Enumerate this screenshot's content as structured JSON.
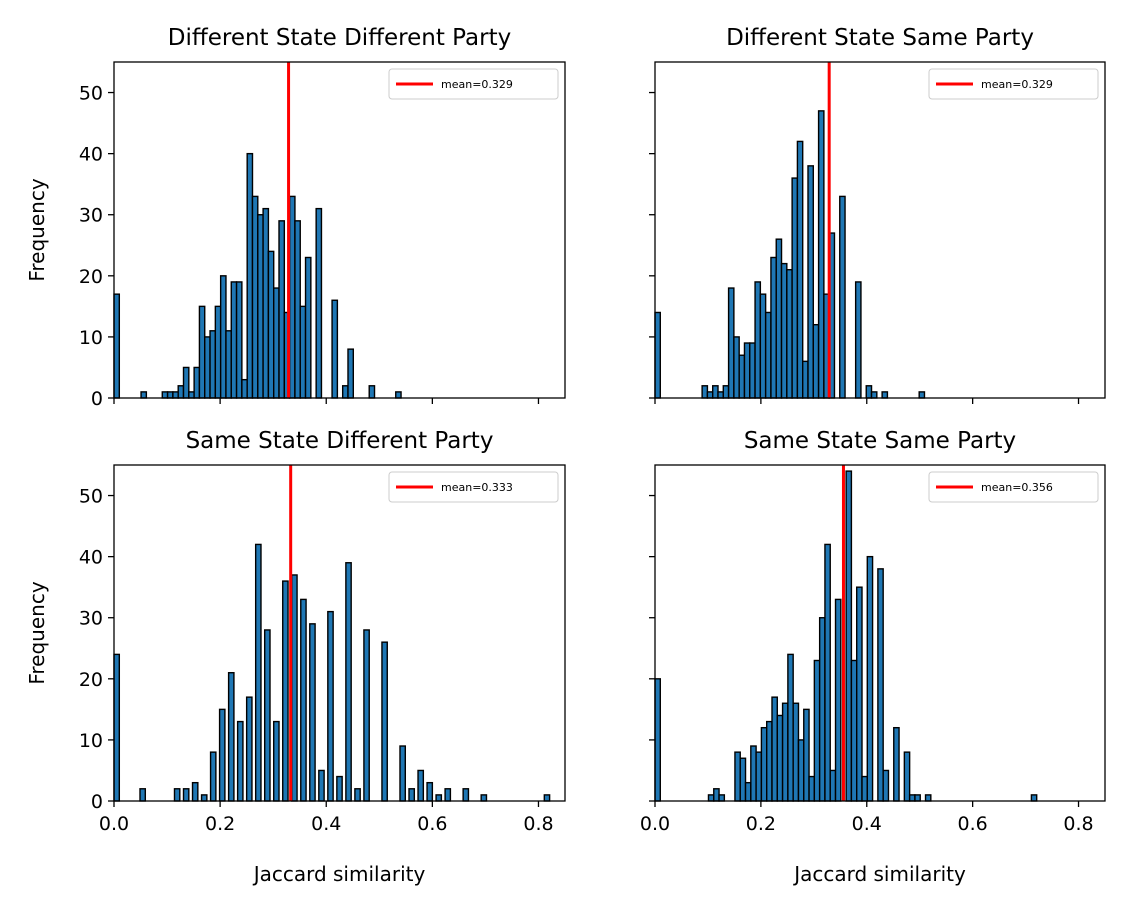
{
  "figure": {
    "bar_color": "#1f77b4",
    "edge_color": "#000000",
    "mean_line_color": "#ff0000"
  },
  "chart_data": [
    {
      "type": "bar",
      "title": "Different State Different Party",
      "xlabel": "",
      "ylabel": "Frequency",
      "xlim": [
        0.0,
        0.85
      ],
      "ylim": [
        0,
        55
      ],
      "x_ticks": [
        "0.0",
        "0.2",
        "0.4",
        "0.6",
        "0.8"
      ],
      "x_ticklabels_visible": false,
      "y_ticks": [
        "0",
        "10",
        "20",
        "30",
        "40",
        "50"
      ],
      "y_ticklabels_visible": true,
      "bin_width": 0.01,
      "bins": [
        [
          0.0,
          17
        ],
        [
          0.051,
          1
        ],
        [
          0.091,
          1
        ],
        [
          0.101,
          1
        ],
        [
          0.111,
          1
        ],
        [
          0.121,
          2
        ],
        [
          0.131,
          5
        ],
        [
          0.141,
          1
        ],
        [
          0.151,
          5
        ],
        [
          0.161,
          15
        ],
        [
          0.171,
          10
        ],
        [
          0.181,
          11
        ],
        [
          0.191,
          15
        ],
        [
          0.201,
          20
        ],
        [
          0.211,
          11
        ],
        [
          0.221,
          19
        ],
        [
          0.231,
          19
        ],
        [
          0.241,
          3
        ],
        [
          0.251,
          40
        ],
        [
          0.261,
          33
        ],
        [
          0.271,
          30
        ],
        [
          0.281,
          31
        ],
        [
          0.291,
          24
        ],
        [
          0.301,
          18
        ],
        [
          0.311,
          29
        ],
        [
          0.321,
          14
        ],
        [
          0.331,
          33
        ],
        [
          0.341,
          29
        ],
        [
          0.351,
          15
        ],
        [
          0.361,
          23
        ],
        [
          0.381,
          31
        ],
        [
          0.411,
          16
        ],
        [
          0.431,
          2
        ],
        [
          0.441,
          8
        ],
        [
          0.481,
          2
        ],
        [
          0.531,
          1
        ]
      ],
      "mean_value": 0.329,
      "legend": {
        "label": "mean=0.329",
        "placement": "top-right"
      }
    },
    {
      "type": "bar",
      "title": "Different State Same Party",
      "xlabel": "",
      "ylabel": "",
      "xlim": [
        0.0,
        0.85
      ],
      "ylim": [
        0,
        55
      ],
      "x_ticks": [
        "0.0",
        "0.2",
        "0.4",
        "0.6",
        "0.8"
      ],
      "x_ticklabels_visible": false,
      "y_ticks": [
        "0",
        "10",
        "20",
        "30",
        "40",
        "50"
      ],
      "y_ticklabels_visible": false,
      "bin_width": 0.01,
      "bins": [
        [
          0.0,
          14
        ],
        [
          0.089,
          2
        ],
        [
          0.099,
          1
        ],
        [
          0.109,
          2
        ],
        [
          0.119,
          1
        ],
        [
          0.129,
          2
        ],
        [
          0.139,
          18
        ],
        [
          0.149,
          10
        ],
        [
          0.159,
          7
        ],
        [
          0.169,
          9
        ],
        [
          0.179,
          9
        ],
        [
          0.189,
          19
        ],
        [
          0.199,
          17
        ],
        [
          0.209,
          14
        ],
        [
          0.219,
          23
        ],
        [
          0.229,
          26
        ],
        [
          0.239,
          22
        ],
        [
          0.249,
          21
        ],
        [
          0.259,
          36
        ],
        [
          0.269,
          42
        ],
        [
          0.279,
          6
        ],
        [
          0.289,
          38
        ],
        [
          0.299,
          12
        ],
        [
          0.309,
          47
        ],
        [
          0.319,
          17
        ],
        [
          0.329,
          27
        ],
        [
          0.349,
          33
        ],
        [
          0.379,
          19
        ],
        [
          0.399,
          2
        ],
        [
          0.409,
          1
        ],
        [
          0.429,
          1
        ],
        [
          0.499,
          1
        ]
      ],
      "mean_value": 0.329,
      "legend": {
        "label": "mean=0.329",
        "placement": "top-right"
      }
    },
    {
      "type": "bar",
      "title": "Same State Different Party",
      "xlabel": "Jaccard similarity",
      "ylabel": "Frequency",
      "xlim": [
        0.0,
        0.85
      ],
      "ylim": [
        0,
        55
      ],
      "x_ticks": [
        "0.0",
        "0.2",
        "0.4",
        "0.6",
        "0.8"
      ],
      "x_ticklabels_visible": true,
      "y_ticks": [
        "0",
        "10",
        "20",
        "30",
        "40",
        "50"
      ],
      "y_ticklabels_visible": true,
      "bin_width": 0.01,
      "bins": [
        [
          0.0,
          24
        ],
        [
          0.049,
          2
        ],
        [
          0.114,
          2
        ],
        [
          0.131,
          2
        ],
        [
          0.148,
          3
        ],
        [
          0.165,
          1
        ],
        [
          0.182,
          8
        ],
        [
          0.199,
          15
        ],
        [
          0.216,
          21
        ],
        [
          0.233,
          13
        ],
        [
          0.25,
          17
        ],
        [
          0.267,
          42
        ],
        [
          0.284,
          28
        ],
        [
          0.301,
          13
        ],
        [
          0.318,
          36
        ],
        [
          0.335,
          37
        ],
        [
          0.352,
          33
        ],
        [
          0.369,
          29
        ],
        [
          0.386,
          5
        ],
        [
          0.403,
          31
        ],
        [
          0.42,
          4
        ],
        [
          0.437,
          39
        ],
        [
          0.454,
          2
        ],
        [
          0.471,
          28
        ],
        [
          0.505,
          26
        ],
        [
          0.539,
          9
        ],
        [
          0.556,
          2
        ],
        [
          0.573,
          5
        ],
        [
          0.59,
          3
        ],
        [
          0.607,
          1
        ],
        [
          0.624,
          2
        ],
        [
          0.658,
          2
        ],
        [
          0.692,
          1
        ],
        [
          0.811,
          1
        ]
      ],
      "mean_value": 0.333,
      "legend": {
        "label": "mean=0.333",
        "placement": "top-right"
      }
    },
    {
      "type": "bar",
      "title": "Same State Same Party",
      "xlabel": "Jaccard similarity",
      "ylabel": "",
      "xlim": [
        0.0,
        0.85
      ],
      "ylim": [
        0,
        55
      ],
      "x_ticks": [
        "0.0",
        "0.2",
        "0.4",
        "0.6",
        "0.8"
      ],
      "x_ticklabels_visible": true,
      "y_ticks": [
        "0",
        "10",
        "20",
        "30",
        "40",
        "50"
      ],
      "y_ticklabels_visible": false,
      "bin_width": 0.01,
      "bins": [
        [
          0.0,
          20
        ],
        [
          0.101,
          1
        ],
        [
          0.111,
          2
        ],
        [
          0.121,
          1
        ],
        [
          0.151,
          8
        ],
        [
          0.161,
          7
        ],
        [
          0.171,
          3
        ],
        [
          0.181,
          9
        ],
        [
          0.191,
          8
        ],
        [
          0.201,
          12
        ],
        [
          0.211,
          13
        ],
        [
          0.221,
          17
        ],
        [
          0.231,
          14
        ],
        [
          0.241,
          16
        ],
        [
          0.251,
          24
        ],
        [
          0.261,
          16
        ],
        [
          0.271,
          10
        ],
        [
          0.281,
          15
        ],
        [
          0.291,
          4
        ],
        [
          0.301,
          23
        ],
        [
          0.311,
          30
        ],
        [
          0.321,
          42
        ],
        [
          0.331,
          5
        ],
        [
          0.341,
          33
        ],
        [
          0.361,
          54
        ],
        [
          0.371,
          23
        ],
        [
          0.381,
          35
        ],
        [
          0.391,
          4
        ],
        [
          0.401,
          40
        ],
        [
          0.421,
          38
        ],
        [
          0.431,
          5
        ],
        [
          0.451,
          12
        ],
        [
          0.471,
          8
        ],
        [
          0.481,
          1
        ],
        [
          0.491,
          1
        ],
        [
          0.511,
          1
        ],
        [
          0.711,
          1
        ]
      ],
      "mean_value": 0.356,
      "legend": {
        "label": "mean=0.356",
        "placement": "top-right"
      }
    }
  ]
}
